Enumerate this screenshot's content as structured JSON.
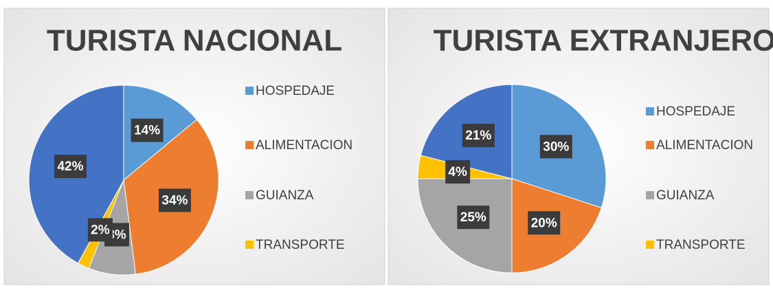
{
  "chart_data": [
    {
      "type": "pie",
      "title": "TURISTA NACIONAL",
      "categories": [
        "HOSPEDAJE",
        "ALIMENTACION",
        "GUIANZA",
        "TRANSPORTE",
        null
      ],
      "values": [
        14,
        34,
        8,
        2,
        42
      ],
      "value_labels": [
        "14%",
        "34%",
        "8%",
        "2%",
        "42%"
      ],
      "colors": [
        "#5b9bd5",
        "#ed7d31",
        "#a5a5a5",
        "#ffc000",
        "#4472c4"
      ]
    },
    {
      "type": "pie",
      "title": "TURISTA EXTRANJERO",
      "categories": [
        "HOSPEDAJE",
        "ALIMENTACION",
        "GUIANZA",
        "TRANSPORTE",
        null
      ],
      "values": [
        30,
        20,
        25,
        4,
        21
      ],
      "value_labels": [
        "30%",
        "20%",
        "25%",
        "4%",
        "21%"
      ],
      "colors": [
        "#5b9bd5",
        "#ed7d31",
        "#a5a5a5",
        "#ffc000",
        "#4472c4"
      ]
    }
  ]
}
